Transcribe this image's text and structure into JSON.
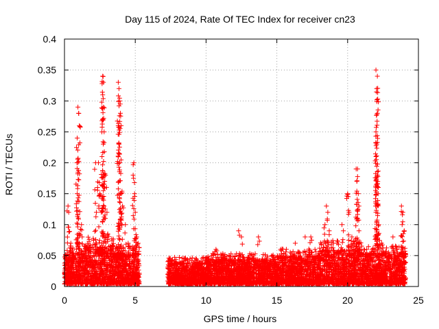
{
  "chart_data": {
    "type": "scatter",
    "title": "Day 115 of 2024, Rate Of TEC Index for receiver cn23",
    "xlabel": "GPS time / hours",
    "ylabel": "ROTI / TECUs",
    "xlim": [
      0,
      25
    ],
    "ylim": [
      0,
      0.4
    ],
    "x_ticks": [
      0,
      5,
      10,
      15,
      20,
      25
    ],
    "x_tick_labels": [
      "0",
      "5",
      "10",
      "15",
      "20",
      "25"
    ],
    "y_ticks": [
      0,
      0.05,
      0.1,
      0.15,
      0.2,
      0.25,
      0.3,
      0.35,
      0.4
    ],
    "y_tick_labels": [
      "0",
      "0.05",
      "0.1",
      "0.15",
      "0.2",
      "0.25",
      "0.3",
      "0.35",
      "0.4"
    ],
    "grid": true,
    "marker": "+",
    "marker_color": "#ff0000",
    "data_gap_hours": [
      5.3,
      7.3
    ],
    "series": [
      {
        "name": "ROTI",
        "notable_points": [
          {
            "x": 0.25,
            "y": 0.13
          },
          {
            "x": 0.3,
            "y": 0.12
          },
          {
            "x": 0.45,
            "y": 0.07
          },
          {
            "x": 0.95,
            "y": 0.29
          },
          {
            "x": 1.0,
            "y": 0.28
          },
          {
            "x": 1.05,
            "y": 0.26
          },
          {
            "x": 0.9,
            "y": 0.24
          },
          {
            "x": 0.88,
            "y": 0.2
          },
          {
            "x": 0.9,
            "y": 0.15
          },
          {
            "x": 1.2,
            "y": 0.1
          },
          {
            "x": 1.25,
            "y": 0.08
          },
          {
            "x": 2.2,
            "y": 0.2
          },
          {
            "x": 2.4,
            "y": 0.2
          },
          {
            "x": 2.5,
            "y": 0.15
          },
          {
            "x": 2.7,
            "y": 0.34
          },
          {
            "x": 2.75,
            "y": 0.33
          },
          {
            "x": 2.7,
            "y": 0.31
          },
          {
            "x": 2.75,
            "y": 0.29
          },
          {
            "x": 2.7,
            "y": 0.27
          },
          {
            "x": 2.8,
            "y": 0.25
          },
          {
            "x": 2.65,
            "y": 0.21
          },
          {
            "x": 2.9,
            "y": 0.18
          },
          {
            "x": 3.0,
            "y": 0.12
          },
          {
            "x": 3.8,
            "y": 0.33
          },
          {
            "x": 3.85,
            "y": 0.32
          },
          {
            "x": 3.9,
            "y": 0.3
          },
          {
            "x": 3.95,
            "y": 0.28
          },
          {
            "x": 4.0,
            "y": 0.26
          },
          {
            "x": 3.85,
            "y": 0.23
          },
          {
            "x": 3.9,
            "y": 0.2
          },
          {
            "x": 4.0,
            "y": 0.15
          },
          {
            "x": 4.1,
            "y": 0.13
          },
          {
            "x": 4.3,
            "y": 0.1
          },
          {
            "x": 4.5,
            "y": 0.07
          },
          {
            "x": 4.9,
            "y": 0.2
          },
          {
            "x": 4.85,
            "y": 0.18
          },
          {
            "x": 4.95,
            "y": 0.15
          },
          {
            "x": 5.0,
            "y": 0.12
          },
          {
            "x": 5.1,
            "y": 0.08
          },
          {
            "x": 5.2,
            "y": 0.07
          },
          {
            "x": 10.7,
            "y": 0.06
          },
          {
            "x": 12.3,
            "y": 0.09
          },
          {
            "x": 12.5,
            "y": 0.08
          },
          {
            "x": 13.7,
            "y": 0.08
          },
          {
            "x": 16.3,
            "y": 0.07
          },
          {
            "x": 17.0,
            "y": 0.08
          },
          {
            "x": 17.4,
            "y": 0.08
          },
          {
            "x": 18.5,
            "y": 0.13
          },
          {
            "x": 18.6,
            "y": 0.12
          },
          {
            "x": 18.4,
            "y": 0.1
          },
          {
            "x": 18.7,
            "y": 0.09
          },
          {
            "x": 19.0,
            "y": 0.07
          },
          {
            "x": 19.6,
            "y": 0.1
          },
          {
            "x": 19.7,
            "y": 0.09
          },
          {
            "x": 20.0,
            "y": 0.15
          },
          {
            "x": 20.1,
            "y": 0.12
          },
          {
            "x": 20.3,
            "y": 0.08
          },
          {
            "x": 20.6,
            "y": 0.19
          },
          {
            "x": 20.7,
            "y": 0.19
          },
          {
            "x": 20.65,
            "y": 0.17
          },
          {
            "x": 20.75,
            "y": 0.15
          },
          {
            "x": 20.8,
            "y": 0.13
          },
          {
            "x": 20.7,
            "y": 0.11
          },
          {
            "x": 20.8,
            "y": 0.09
          },
          {
            "x": 22.0,
            "y": 0.35
          },
          {
            "x": 22.1,
            "y": 0.34
          },
          {
            "x": 22.05,
            "y": 0.32
          },
          {
            "x": 22.1,
            "y": 0.28
          },
          {
            "x": 22.0,
            "y": 0.25
          },
          {
            "x": 22.05,
            "y": 0.23
          },
          {
            "x": 22.0,
            "y": 0.21
          },
          {
            "x": 22.1,
            "y": 0.18
          },
          {
            "x": 22.15,
            "y": 0.15
          },
          {
            "x": 22.0,
            "y": 0.12
          },
          {
            "x": 22.2,
            "y": 0.1
          },
          {
            "x": 22.4,
            "y": 0.07
          },
          {
            "x": 23.2,
            "y": 0.08
          },
          {
            "x": 23.5,
            "y": 0.06
          },
          {
            "x": 23.8,
            "y": 0.13
          },
          {
            "x": 23.9,
            "y": 0.12
          },
          {
            "x": 23.85,
            "y": 0.1
          },
          {
            "x": 24.0,
            "y": 0.09
          }
        ],
        "background_envelope": [
          {
            "x_start": 0.0,
            "x_end": 1.5,
            "y_base_max": 0.05
          },
          {
            "x_start": 1.5,
            "x_end": 3.5,
            "y_base_max": 0.06
          },
          {
            "x_start": 3.5,
            "x_end": 5.3,
            "y_base_max": 0.05
          },
          {
            "x_start": 7.3,
            "x_end": 10.0,
            "y_base_max": 0.035
          },
          {
            "x_start": 10.0,
            "x_end": 15.0,
            "y_base_max": 0.04
          },
          {
            "x_start": 15.0,
            "x_end": 18.0,
            "y_base_max": 0.045
          },
          {
            "x_start": 18.0,
            "x_end": 21.0,
            "y_base_max": 0.055
          },
          {
            "x_start": 21.0,
            "x_end": 24.1,
            "y_base_max": 0.05
          }
        ]
      }
    ]
  }
}
